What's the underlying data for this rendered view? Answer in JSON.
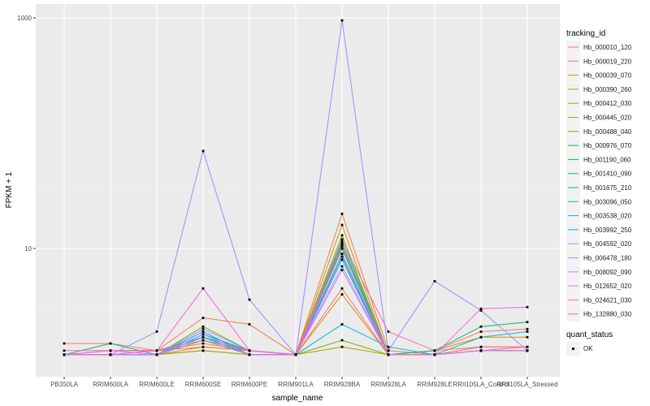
{
  "chart_data": {
    "type": "line",
    "xlabel": "sample_name",
    "ylabel": "FPKM + 1",
    "y_scale": "log10",
    "ylim": [
      1,
      1000
    ],
    "y_ticks": [
      "10",
      "1000"
    ],
    "categories": [
      "PB350LA",
      "RRIM600LA",
      "RRIM600LE",
      "RRIM600SE",
      "RRIM600PE",
      "RRIM901LA",
      "RRIM928BA",
      "RRIM928LA",
      "RRIM928LE",
      "RRII105LA_Control",
      "RRII105LA_Stressed"
    ],
    "legend": {
      "title": "tracking_id",
      "placement": "right",
      "shape_title": "quant_status",
      "shape_label": "OK"
    },
    "grid": true,
    "series": [
      {
        "name": "Hb_000010_120",
        "color": "#F8766D",
        "values": [
          1.5,
          1.5,
          1.3,
          1.4,
          1.3,
          1.2,
          4.5,
          1.2,
          1.3,
          1.9,
          2.0
        ]
      },
      {
        "name": "Hb_000019_220",
        "color": "#F07F44",
        "values": [
          1.2,
          1.3,
          1.3,
          2.5,
          2.2,
          1.2,
          20.0,
          1.3,
          1.2,
          1.3,
          1.4
        ]
      },
      {
        "name": "Hb_000039_070",
        "color": "#E08B00",
        "values": [
          1.2,
          1.2,
          1.2,
          1.4,
          1.3,
          1.2,
          4.0,
          1.2,
          1.3,
          1.7,
          1.7
        ]
      },
      {
        "name": "Hb_000390_260",
        "color": "#CF9400",
        "values": [
          1.2,
          1.3,
          1.3,
          1.5,
          1.3,
          1.2,
          16.0,
          1.2,
          1.2,
          1.4,
          1.4
        ]
      },
      {
        "name": "Hb_000412_030",
        "color": "#B79F00",
        "values": [
          1.2,
          1.2,
          1.2,
          1.3,
          1.2,
          1.2,
          1.4,
          1.2,
          1.2,
          1.3,
          1.3
        ]
      },
      {
        "name": "Hb_000445_020",
        "color": "#9AA800",
        "values": [
          1.2,
          1.2,
          1.2,
          1.3,
          1.2,
          1.2,
          13.0,
          1.2,
          1.2,
          1.3,
          1.3
        ]
      },
      {
        "name": "Hb_000488_040",
        "color": "#6BB100",
        "values": [
          1.2,
          1.2,
          1.2,
          2.1,
          1.3,
          1.2,
          1.6,
          1.2,
          1.2,
          1.3,
          1.3
        ]
      },
      {
        "name": "Hb_000976_070",
        "color": "#00BA38",
        "values": [
          1.2,
          1.2,
          1.2,
          1.8,
          1.3,
          1.2,
          10.0,
          1.2,
          1.2,
          1.3,
          1.3
        ]
      },
      {
        "name": "Hb_001190_060",
        "color": "#00BE67",
        "values": [
          1.2,
          1.5,
          1.2,
          1.6,
          1.3,
          1.2,
          11.0,
          1.2,
          1.3,
          2.1,
          2.3
        ]
      },
      {
        "name": "Hb_001410_090",
        "color": "#00C08B",
        "values": [
          1.2,
          1.2,
          1.2,
          1.7,
          1.2,
          1.2,
          12.0,
          1.2,
          1.2,
          1.3,
          1.3
        ]
      },
      {
        "name": "Hb_001675_210",
        "color": "#00BFAA",
        "values": [
          1.2,
          1.2,
          1.2,
          1.6,
          1.2,
          1.2,
          8.0,
          1.2,
          1.2,
          1.3,
          1.3
        ]
      },
      {
        "name": "Hb_003096_050",
        "color": "#00BBC4",
        "values": [
          1.2,
          1.2,
          1.3,
          1.7,
          1.3,
          1.2,
          9.0,
          1.2,
          1.2,
          1.7,
          1.9
        ]
      },
      {
        "name": "Hb_003538_020",
        "color": "#00B4E4",
        "values": [
          1.2,
          1.2,
          1.2,
          1.8,
          1.3,
          1.2,
          2.2,
          1.4,
          1.2,
          1.3,
          1.3
        ]
      },
      {
        "name": "Hb_003992_250",
        "color": "#00A9FF",
        "values": [
          1.2,
          1.2,
          1.2,
          1.9,
          1.2,
          1.2,
          8.5,
          1.2,
          1.2,
          1.3,
          1.3
        ]
      },
      {
        "name": "Hb_004592_020",
        "color": "#9590FF",
        "values": [
          1.2,
          1.2,
          1.9,
          70.0,
          3.6,
          1.2,
          950.0,
          1.3,
          5.2,
          2.9,
          1.3
        ]
      },
      {
        "name": "Hb_006478_180",
        "color": "#B983FF",
        "values": [
          1.2,
          1.2,
          1.2,
          2.0,
          1.3,
          1.2,
          7.0,
          1.2,
          1.2,
          1.3,
          1.3
        ]
      },
      {
        "name": "Hb_008092_090",
        "color": "#D376FF",
        "values": [
          1.2,
          1.3,
          1.2,
          1.8,
          1.2,
          1.2,
          6.5,
          1.2,
          1.2,
          1.3,
          1.3
        ]
      },
      {
        "name": "Hb_012652_020",
        "color": "#E76BF3",
        "values": [
          1.2,
          1.2,
          1.2,
          1.6,
          1.2,
          1.2,
          9.0,
          1.2,
          1.2,
          1.3,
          1.3
        ]
      },
      {
        "name": "Hb_024621_030",
        "color": "#F763E0",
        "values": [
          1.2,
          1.2,
          1.3,
          4.5,
          1.3,
          1.2,
          10.5,
          1.2,
          1.2,
          3.0,
          3.1
        ]
      },
      {
        "name": "Hb_132880_030",
        "color": "#FF65AC",
        "values": [
          1.3,
          1.3,
          1.3,
          1.6,
          1.3,
          1.2,
          11.5,
          1.9,
          1.3,
          1.4,
          1.4
        ]
      }
    ]
  }
}
